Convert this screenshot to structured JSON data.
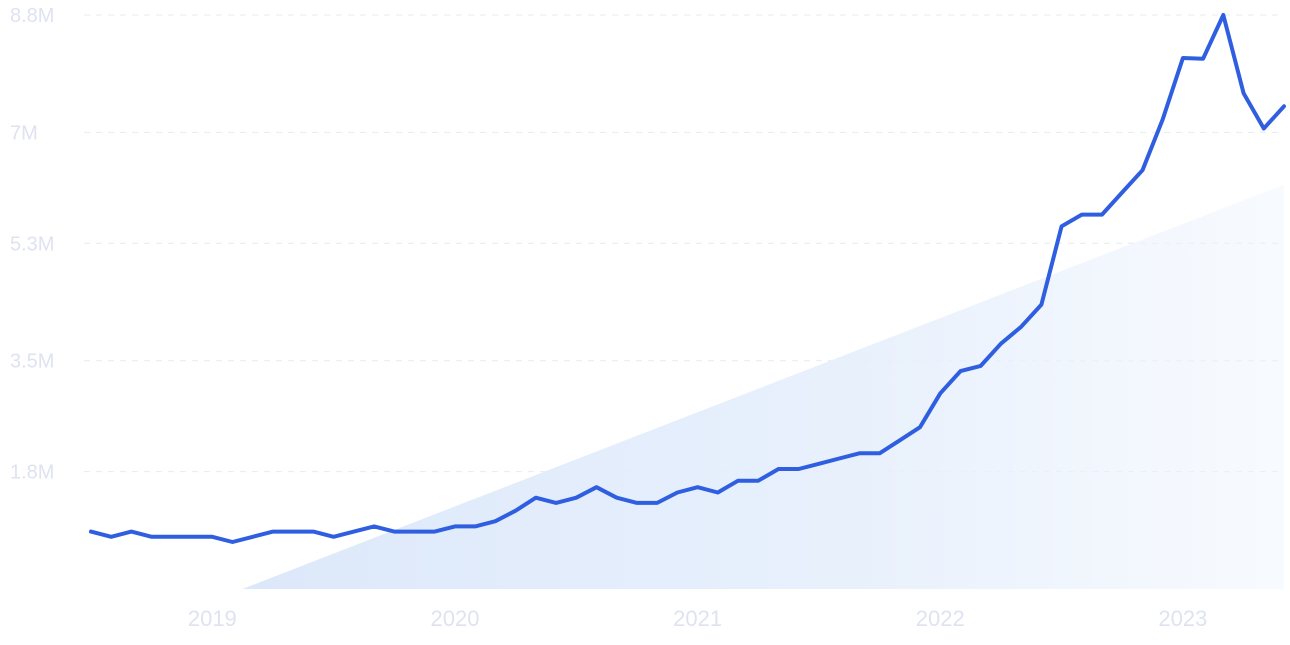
{
  "chart_data": {
    "type": "line",
    "title": "",
    "xlabel": "",
    "ylabel": "",
    "grid": true,
    "legend": "none",
    "ylim": [
      0,
      8.8
    ],
    "y_unit": "M",
    "y_ticks": [
      {
        "value": 1.8,
        "label": "1.8M"
      },
      {
        "value": 3.5,
        "label": "3.5M"
      },
      {
        "value": 5.3,
        "label": "5.3M"
      },
      {
        "value": 7.0,
        "label": "7M"
      },
      {
        "value": 8.8,
        "label": "8.8M"
      }
    ],
    "xlim": [
      "2018-07",
      "2023-06"
    ],
    "x_ticks": [
      {
        "value": "2019-01",
        "label": "2019"
      },
      {
        "value": "2020-01",
        "label": "2020"
      },
      {
        "value": "2021-01",
        "label": "2021"
      },
      {
        "value": "2022-01",
        "label": "2022"
      },
      {
        "value": "2023-01",
        "label": "2023"
      }
    ],
    "series": [
      {
        "color": "#2f5fe0",
        "x": [
          "2018-07",
          "2018-08",
          "2018-09",
          "2018-10",
          "2018-11",
          "2018-12",
          "2019-01",
          "2019-02",
          "2019-03",
          "2019-04",
          "2019-05",
          "2019-06",
          "2019-07",
          "2019-08",
          "2019-09",
          "2019-10",
          "2019-11",
          "2019-12",
          "2020-01",
          "2020-02",
          "2020-03",
          "2020-04",
          "2020-05",
          "2020-06",
          "2020-07",
          "2020-08",
          "2020-09",
          "2020-10",
          "2020-11",
          "2020-12",
          "2021-01",
          "2021-02",
          "2021-03",
          "2021-04",
          "2021-05",
          "2021-06",
          "2021-07",
          "2021-08",
          "2021-09",
          "2021-10",
          "2021-11",
          "2021-12",
          "2022-01",
          "2022-02",
          "2022-03",
          "2022-04",
          "2022-05",
          "2022-06",
          "2022-07",
          "2022-08",
          "2022-09",
          "2022-10",
          "2022-11",
          "2022-12",
          "2023-01",
          "2023-02",
          "2023-03",
          "2023-04",
          "2023-05",
          "2023-06"
        ],
        "values": [
          0.88,
          0.8,
          0.88,
          0.8,
          0.8,
          0.8,
          0.8,
          0.72,
          0.8,
          0.88,
          0.88,
          0.88,
          0.8,
          0.88,
          0.96,
          0.88,
          0.88,
          0.88,
          0.96,
          0.96,
          1.04,
          1.2,
          1.4,
          1.32,
          1.4,
          1.56,
          1.4,
          1.32,
          1.32,
          1.48,
          1.56,
          1.48,
          1.66,
          1.66,
          1.84,
          1.84,
          1.92,
          2.0,
          2.08,
          2.08,
          2.28,
          2.48,
          3.0,
          3.34,
          3.42,
          3.76,
          4.02,
          4.36,
          5.56,
          5.74,
          5.74,
          6.08,
          6.42,
          7.2,
          8.14,
          8.13,
          8.8,
          7.6,
          7.06,
          7.4
        ]
      }
    ],
    "trend_area": {
      "color": "#dde9fb",
      "x_start": "2019-01",
      "x_end": "2023-06",
      "y_start": 0,
      "y_end": 6.2
    }
  }
}
